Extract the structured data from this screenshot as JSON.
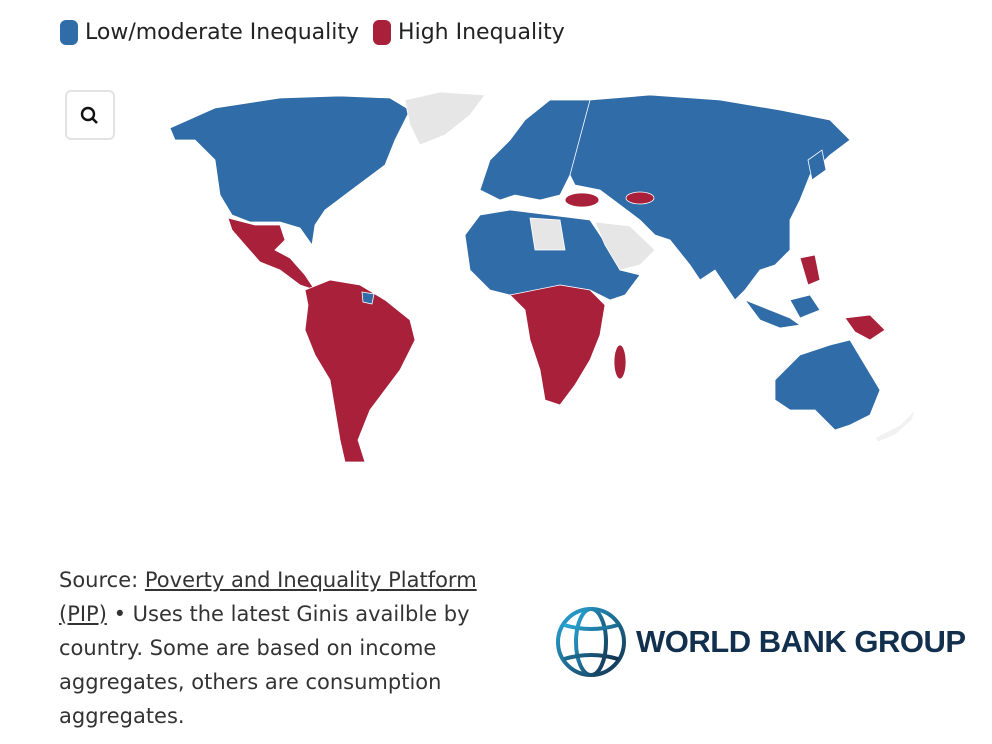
{
  "legend": [
    {
      "label": "Low/moderate Inequality",
      "color": "#2f6ca8"
    },
    {
      "label": "High Inequality",
      "color": "#a8203a"
    }
  ],
  "source": {
    "prefix": "Source:",
    "link": "Poverty and Inequality Platform (PIP)",
    "text": "• Uses the latest Ginis availble by country. Some are based on income aggregates, others are consumption aggregates."
  },
  "logo": {
    "text": "WORLD BANK GROUP"
  }
}
